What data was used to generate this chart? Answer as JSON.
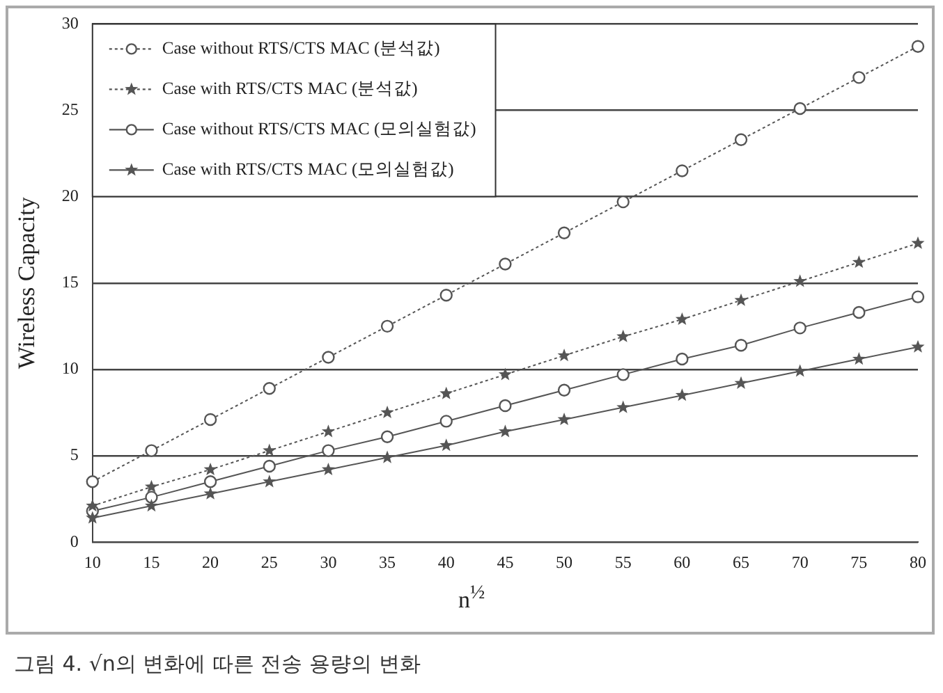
{
  "chart_data": {
    "type": "line",
    "ylabel": "Wireless Capacity",
    "xlabel": "n$^{½}$",
    "categories": [
      "10",
      "15",
      "20",
      "25",
      "30",
      "35",
      "40",
      "45",
      "50",
      "55",
      "60",
      "65",
      "70",
      "75",
      "80"
    ],
    "ylim": [
      0,
      30
    ],
    "yticks": [
      0,
      5,
      10,
      15,
      20,
      25,
      30
    ],
    "grid": "y",
    "legend": "top left",
    "annotations": [
      "그림 4. √n의 변화에 따른 전송 용량의 변화"
    ],
    "series": [
      {
        "name": "Case without RTS/CTS MAC (분석값)",
        "color": "#555555",
        "line_style": "dotted",
        "marker": "circle",
        "values": [
          3.5,
          5.3,
          7.1,
          8.9,
          10.7,
          12.5,
          14.3,
          16.1,
          17.9,
          19.7,
          21.5,
          23.3,
          25.1,
          26.9,
          28.7
        ]
      },
      {
        "name": "Case with RTS/CTS MAC (분석값)",
        "color": "#555555",
        "line_style": "dotted",
        "marker": "star",
        "values": [
          2.1,
          3.2,
          4.2,
          5.3,
          6.4,
          7.5,
          8.6,
          9.7,
          10.8,
          11.9,
          12.9,
          14.0,
          15.1,
          16.2,
          17.3
        ]
      },
      {
        "name": "Case without RTS/CTS MAC (모의실험값)",
        "color": "#555555",
        "line_style": "solid",
        "marker": "circle",
        "values": [
          1.8,
          2.6,
          3.5,
          4.4,
          5.3,
          6.1,
          7.0,
          7.9,
          8.8,
          9.7,
          10.6,
          11.4,
          12.4,
          13.3,
          14.2
        ]
      },
      {
        "name": "Case with RTS/CTS MAC (모의실험값)",
        "color": "#555555",
        "line_style": "solid",
        "marker": "star",
        "values": [
          1.4,
          2.1,
          2.8,
          3.5,
          4.2,
          4.9,
          5.6,
          6.4,
          7.1,
          7.8,
          8.5,
          9.2,
          9.9,
          10.6,
          11.3
        ]
      }
    ]
  }
}
